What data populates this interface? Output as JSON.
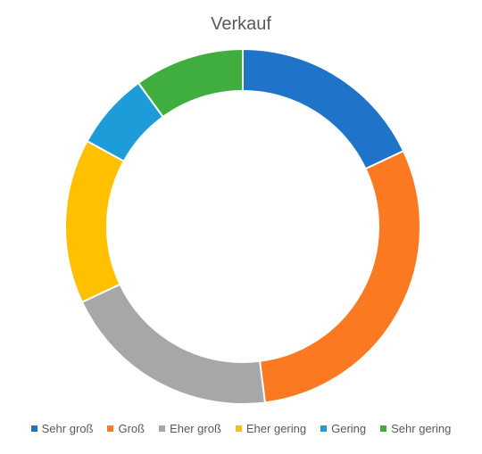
{
  "chart_data": {
    "type": "pie",
    "variant": "donut",
    "title": "Verkauf",
    "categories": [
      "Sehr groß",
      "Groß",
      "Eher groß",
      "Eher gering",
      "Gering",
      "Sehr gering"
    ],
    "values": [
      18,
      30,
      20,
      15,
      7,
      10
    ],
    "colors": [
      "#1F73C8",
      "#FB7A21",
      "#A7A7A7",
      "#FFC000",
      "#1E9CD9",
      "#40AE3F"
    ],
    "legend_position": "bottom",
    "start_angle_deg": 0,
    "direction": "clockwise"
  }
}
